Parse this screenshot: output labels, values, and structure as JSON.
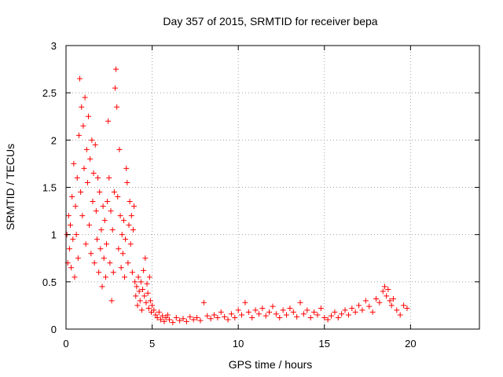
{
  "chart_data": {
    "type": "scatter",
    "title": "Day 357 of 2015, SRMTID for receiver bepa",
    "xlabel": "GPS time / hours",
    "ylabel": "SRMTID / TECUs",
    "xlim": [
      0,
      24
    ],
    "ylim": [
      0,
      3
    ],
    "xticks": [
      0,
      5,
      10,
      15,
      20
    ],
    "xtick_labels": [
      "0",
      "5",
      "10",
      "15",
      "20"
    ],
    "yticks": [
      0,
      0.5,
      1,
      1.5,
      2,
      2.5,
      3
    ],
    "ytick_labels": [
      "0",
      "0.5",
      "1",
      "1.5",
      "2",
      "2.5",
      "3"
    ],
    "grid": true,
    "marker": "+",
    "series_color": "#ff0000",
    "series": [
      {
        "name": "SRMTID",
        "points": [
          [
            0.05,
            1.0
          ],
          [
            0.1,
            0.7
          ],
          [
            0.15,
            1.2
          ],
          [
            0.2,
            0.85
          ],
          [
            0.25,
            1.1
          ],
          [
            0.3,
            0.65
          ],
          [
            0.35,
            1.4
          ],
          [
            0.4,
            0.95
          ],
          [
            0.45,
            1.75
          ],
          [
            0.5,
            0.55
          ],
          [
            0.55,
            1.3
          ],
          [
            0.6,
            1.0
          ],
          [
            0.65,
            1.6
          ],
          [
            0.7,
            0.75
          ],
          [
            0.75,
            2.05
          ],
          [
            0.8,
            2.65
          ],
          [
            0.85,
            1.45
          ],
          [
            0.9,
            2.35
          ],
          [
            0.95,
            1.2
          ],
          [
            1.0,
            2.15
          ],
          [
            1.05,
            1.7
          ],
          [
            1.1,
            2.45
          ],
          [
            1.15,
            0.9
          ],
          [
            1.2,
            1.9
          ],
          [
            1.25,
            1.55
          ],
          [
            1.3,
            2.25
          ],
          [
            1.35,
            1.1
          ],
          [
            1.4,
            1.8
          ],
          [
            1.45,
            0.8
          ],
          [
            1.5,
            2.0
          ],
          [
            1.55,
            1.35
          ],
          [
            1.6,
            1.65
          ],
          [
            1.65,
            0.7
          ],
          [
            1.7,
            1.95
          ],
          [
            1.75,
            1.25
          ],
          [
            1.8,
            0.95
          ],
          [
            1.85,
            1.6
          ],
          [
            1.9,
            0.6
          ],
          [
            1.95,
            1.45
          ],
          [
            2.0,
            0.85
          ],
          [
            2.05,
            1.05
          ],
          [
            2.1,
            0.45
          ],
          [
            2.15,
            1.3
          ],
          [
            2.2,
            0.75
          ],
          [
            2.25,
            1.15
          ],
          [
            2.3,
            0.55
          ],
          [
            2.35,
            0.9
          ],
          [
            2.4,
            1.35
          ],
          [
            2.45,
            2.2
          ],
          [
            2.5,
            1.6
          ],
          [
            2.55,
            0.7
          ],
          [
            2.6,
            1.25
          ],
          [
            2.65,
            0.3
          ],
          [
            2.7,
            1.05
          ],
          [
            2.75,
            0.6
          ],
          [
            2.8,
            1.45
          ],
          [
            2.85,
            2.55
          ],
          [
            2.9,
            2.75
          ],
          [
            2.95,
            2.35
          ],
          [
            3.0,
            1.4
          ],
          [
            3.05,
            0.85
          ],
          [
            3.1,
            1.9
          ],
          [
            3.15,
            1.2
          ],
          [
            3.2,
            0.65
          ],
          [
            3.25,
            1.0
          ],
          [
            3.3,
            0.8
          ],
          [
            3.35,
            1.15
          ],
          [
            3.4,
            0.55
          ],
          [
            3.45,
            0.95
          ],
          [
            3.5,
            1.7
          ],
          [
            3.55,
            1.55
          ],
          [
            3.6,
            0.7
          ],
          [
            3.65,
            1.1
          ],
          [
            3.7,
            1.35
          ],
          [
            3.75,
            0.9
          ],
          [
            3.8,
            1.2
          ],
          [
            3.85,
            0.6
          ],
          [
            3.9,
            1.05
          ],
          [
            3.95,
            1.3
          ],
          [
            4.0,
            0.5
          ],
          [
            4.05,
            0.35
          ],
          [
            4.1,
            0.45
          ],
          [
            4.15,
            0.25
          ],
          [
            4.2,
            0.55
          ],
          [
            4.25,
            0.4
          ],
          [
            4.3,
            0.3
          ],
          [
            4.35,
            0.5
          ],
          [
            4.4,
            0.2
          ],
          [
            4.45,
            0.42
          ],
          [
            4.5,
            0.62
          ],
          [
            4.55,
            0.35
          ],
          [
            4.6,
            0.75
          ],
          [
            4.65,
            0.28
          ],
          [
            4.7,
            0.48
          ],
          [
            4.75,
            0.38
          ],
          [
            4.8,
            0.22
          ],
          [
            4.85,
            0.55
          ],
          [
            4.9,
            0.3
          ],
          [
            4.95,
            0.18
          ],
          [
            5.0,
            0.25
          ],
          [
            5.1,
            0.2
          ],
          [
            5.2,
            0.15
          ],
          [
            5.3,
            0.12
          ],
          [
            5.4,
            0.18
          ],
          [
            5.5,
            0.1
          ],
          [
            5.6,
            0.14
          ],
          [
            5.7,
            0.08
          ],
          [
            5.8,
            0.12
          ],
          [
            5.9,
            0.15
          ],
          [
            6.0,
            0.1
          ],
          [
            6.2,
            0.07
          ],
          [
            6.4,
            0.12
          ],
          [
            6.6,
            0.09
          ],
          [
            6.8,
            0.11
          ],
          [
            7.0,
            0.08
          ],
          [
            7.2,
            0.13
          ],
          [
            7.4,
            0.1
          ],
          [
            7.6,
            0.12
          ],
          [
            7.8,
            0.09
          ],
          [
            8.0,
            0.28
          ],
          [
            8.2,
            0.14
          ],
          [
            8.4,
            0.11
          ],
          [
            8.6,
            0.15
          ],
          [
            8.8,
            0.12
          ],
          [
            9.0,
            0.18
          ],
          [
            9.2,
            0.13
          ],
          [
            9.4,
            0.1
          ],
          [
            9.6,
            0.16
          ],
          [
            9.8,
            0.12
          ],
          [
            10.0,
            0.2
          ],
          [
            10.2,
            0.15
          ],
          [
            10.4,
            0.28
          ],
          [
            10.6,
            0.18
          ],
          [
            10.8,
            0.12
          ],
          [
            11.0,
            0.2
          ],
          [
            11.2,
            0.16
          ],
          [
            11.4,
            0.22
          ],
          [
            11.6,
            0.14
          ],
          [
            11.8,
            0.18
          ],
          [
            12.0,
            0.24
          ],
          [
            12.2,
            0.16
          ],
          [
            12.4,
            0.12
          ],
          [
            12.6,
            0.2
          ],
          [
            12.8,
            0.15
          ],
          [
            13.0,
            0.22
          ],
          [
            13.2,
            0.18
          ],
          [
            13.4,
            0.13
          ],
          [
            13.6,
            0.28
          ],
          [
            13.8,
            0.16
          ],
          [
            14.0,
            0.2
          ],
          [
            14.2,
            0.12
          ],
          [
            14.4,
            0.18
          ],
          [
            14.6,
            0.15
          ],
          [
            14.8,
            0.22
          ],
          [
            15.0,
            0.12
          ],
          [
            15.2,
            0.1
          ],
          [
            15.4,
            0.14
          ],
          [
            15.6,
            0.18
          ],
          [
            15.8,
            0.12
          ],
          [
            16.0,
            0.16
          ],
          [
            16.2,
            0.2
          ],
          [
            16.4,
            0.15
          ],
          [
            16.6,
            0.22
          ],
          [
            16.8,
            0.18
          ],
          [
            17.0,
            0.25
          ],
          [
            17.2,
            0.2
          ],
          [
            17.4,
            0.3
          ],
          [
            17.6,
            0.24
          ],
          [
            17.8,
            0.18
          ],
          [
            18.0,
            0.32
          ],
          [
            18.2,
            0.28
          ],
          [
            18.4,
            0.4
          ],
          [
            18.5,
            0.45
          ],
          [
            18.6,
            0.35
          ],
          [
            18.7,
            0.42
          ],
          [
            18.8,
            0.3
          ],
          [
            18.9,
            0.25
          ],
          [
            19.0,
            0.32
          ],
          [
            19.2,
            0.2
          ],
          [
            19.4,
            0.15
          ],
          [
            19.6,
            0.25
          ],
          [
            19.8,
            0.22
          ]
        ]
      }
    ]
  }
}
